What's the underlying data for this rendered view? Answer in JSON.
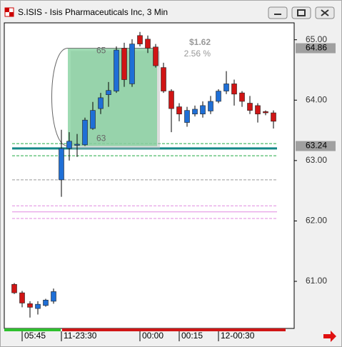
{
  "chart_data": {
    "type": "candlestick",
    "title": "S.ISIS - Isis Pharmaceuticals Inc, 3 Min",
    "categories": [
      null,
      "05:45",
      null,
      null,
      null,
      null,
      "11-23:30",
      null,
      null,
      null,
      null,
      null,
      null,
      null,
      null,
      null,
      "00:00",
      null,
      null,
      null,
      null,
      "00:15",
      null,
      null,
      null,
      null,
      "12-00:30",
      null,
      null,
      null,
      null,
      null,
      null,
      null
    ],
    "open": [
      60.95,
      60.81,
      60.63,
      60.55,
      60.6,
      60.67,
      62.68,
      63.2,
      63.26,
      63.26,
      63.53,
      63.86,
      64.09,
      64.15,
      64.86,
      64.27,
      65.07,
      65.01,
      64.88,
      64.54,
      64.15,
      63.89,
      63.63,
      63.77,
      63.77,
      63.82,
      63.98,
      64.15,
      64.27,
      64.12,
      63.95,
      63.91,
      63.81,
      63.79
    ],
    "high": [
      60.97,
      60.84,
      60.67,
      60.67,
      60.71,
      60.88,
      63.51,
      63.47,
      63.44,
      63.71,
      63.97,
      64.12,
      64.3,
      64.89,
      64.95,
      65.01,
      65.13,
      65.07,
      64.93,
      64.62,
      64.18,
      63.95,
      63.89,
      63.91,
      63.98,
      64.07,
      64.18,
      64.48,
      64.34,
      64.15,
      64.07,
      63.95,
      63.83,
      63.83
    ],
    "low": [
      60.79,
      60.57,
      60.4,
      60.45,
      60.58,
      60.63,
      62.4,
      63.0,
      63.06,
      63.24,
      63.51,
      63.77,
      63.89,
      64.12,
      64.22,
      64.22,
      64.89,
      64.78,
      64.54,
      64.12,
      63.47,
      63.65,
      63.56,
      63.73,
      63.71,
      63.77,
      63.95,
      64.1,
      63.91,
      63.89,
      63.77,
      63.63,
      63.75,
      63.53
    ],
    "close": [
      60.81,
      60.64,
      60.57,
      60.62,
      60.69,
      60.83,
      63.2,
      63.32,
      63.27,
      63.67,
      63.83,
      64.04,
      64.16,
      64.83,
      64.34,
      64.93,
      64.93,
      64.86,
      64.57,
      64.15,
      63.86,
      63.77,
      63.83,
      63.85,
      63.91,
      63.98,
      64.15,
      64.27,
      64.1,
      63.98,
      63.83,
      63.77,
      63.79,
      63.65
    ],
    "up_color": "#1f6fd6",
    "down_color": "#d01515",
    "ylim": [
      60.22,
      65.28
    ],
    "yticks": [
      {
        "value": 65,
        "label": "65.00"
      },
      {
        "value": 64,
        "label": "64.00"
      },
      {
        "value": 63,
        "label": "63.00"
      },
      {
        "value": 62,
        "label": "62.00"
      },
      {
        "value": 61,
        "label": "61.00"
      }
    ],
    "price_tags": [
      64.86,
      63.24
    ],
    "levels": [
      {
        "value": 63.28,
        "color": "#22aa44",
        "style": "dashed"
      },
      {
        "value": 63.08,
        "color": "#22aa44",
        "style": "dashed"
      },
      {
        "value": 63.2,
        "color": "#138888",
        "style": "solid"
      },
      {
        "value": 62.68,
        "color": "#999999",
        "style": "dashed"
      },
      {
        "value": 62.25,
        "color": "#e08ae0",
        "style": "dashed"
      },
      {
        "value": 62.15,
        "color": "#e08ae0",
        "style": "solid"
      },
      {
        "value": 62.04,
        "color": "#e08ae0",
        "style": "dashed"
      }
    ],
    "measure": {
      "from": 7,
      "to": 18,
      "high": 64.86,
      "low": 63.24,
      "high_label": "65",
      "low_label": "63",
      "change_label": "$1.62",
      "percent_label": "2.56 %"
    }
  }
}
